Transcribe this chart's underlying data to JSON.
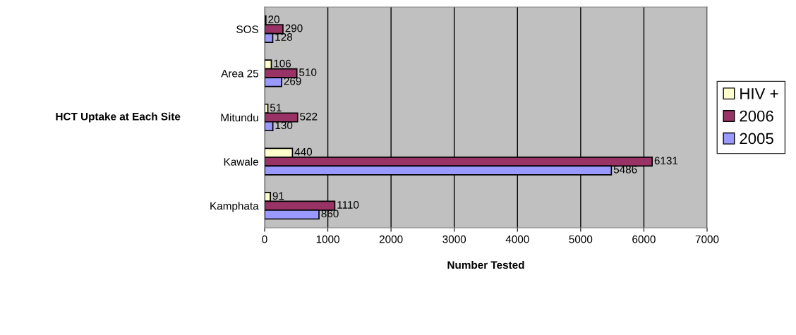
{
  "chart_data": {
    "type": "bar",
    "orientation": "horizontal",
    "xlabel": "Number Tested",
    "ylabel": "HCT Uptake at Each Site",
    "categories": [
      "SOS",
      "Area 25",
      "Mitundu",
      "Kawale",
      "Kamphata"
    ],
    "series": [
      {
        "name": "HIV +",
        "color": "#ffffcc",
        "values": [
          20,
          106,
          51,
          440,
          91
        ]
      },
      {
        "name": "2006",
        "color": "#993366",
        "values": [
          290,
          510,
          522,
          6131,
          1110
        ]
      },
      {
        "name": "2005",
        "color": "#9999ff",
        "values": [
          128,
          269,
          130,
          5486,
          860
        ]
      }
    ],
    "xlim": [
      0,
      7000
    ],
    "xticks": [
      0,
      1000,
      2000,
      3000,
      4000,
      5000,
      6000,
      7000
    ],
    "grid": "x",
    "legend": "right",
    "data_labels": true
  }
}
